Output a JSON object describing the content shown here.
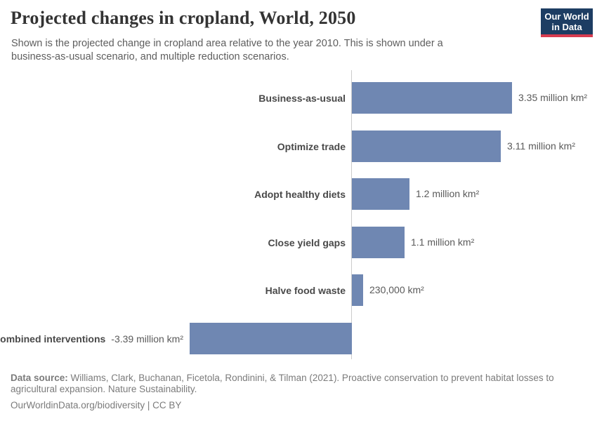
{
  "header": {
    "title": "Projected changes in cropland, World, 2050",
    "subtitle": "Shown is the projected change in cropland area relative to the year 2010. This is shown under a business-as-usual scenario, and multiple reduction scenarios.",
    "logo": {
      "line1": "Our World",
      "line2": "in Data"
    }
  },
  "chart_data": {
    "type": "bar",
    "orientation": "horizontal",
    "title": "Projected changes in cropland, World, 2050",
    "categories": [
      "Business-as-usual",
      "Optimize trade",
      "Adopt healthy diets",
      "Close yield gaps",
      "Halve food waste",
      "Combined interventions"
    ],
    "values_million_km2": [
      3.35,
      3.11,
      1.2,
      1.1,
      0.23,
      -3.39
    ],
    "value_labels": [
      "3.35 million km²",
      "3.11 million km²",
      "1.2 million km²",
      "1.1 million km²",
      "230,000 km²",
      "-3.39 million km²"
    ],
    "unit": "km²",
    "zero_line": true,
    "grid": false,
    "legend": "none",
    "xlim": [
      -3.39,
      3.35
    ]
  },
  "colors": {
    "bar": "#6f87b2",
    "axis_line": "#cccccc",
    "logo_navy": "#1d3d63",
    "logo_red": "#d73c50"
  },
  "footer": {
    "source_label": "Data source:",
    "source_text": " Williams, Clark, Buchanan, Ficetola, Rondinini, & Tilman (2021). Proactive conservation to prevent habitat losses to agricultural expansion. Nature Sustainability.",
    "citation": "OurWorldinData.org/biodiversity | CC BY"
  }
}
